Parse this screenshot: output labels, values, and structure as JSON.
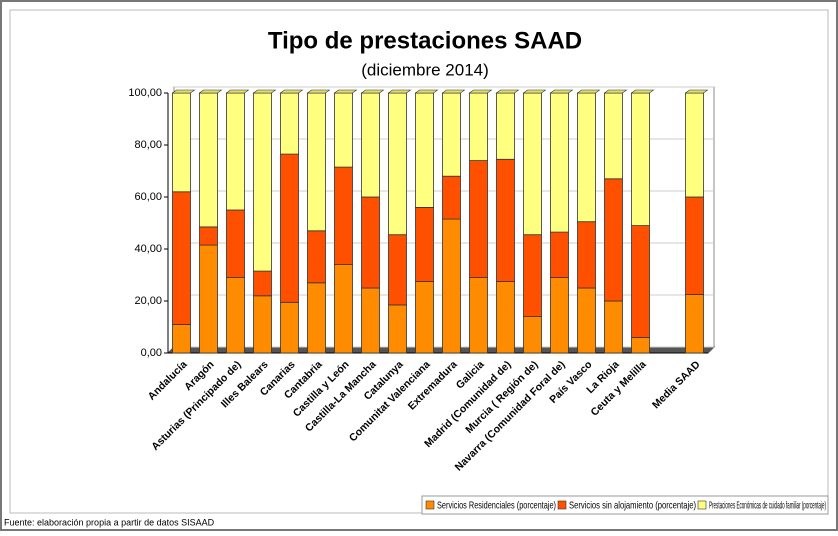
{
  "chart_data": {
    "type": "stacked_bar",
    "title": "Tipo de prestaciones SAAD",
    "subtitle": "(diciembre 2014)",
    "source": "Fuente: elaboración propia a partir de datos SISAAD",
    "categories": [
      "Andalucía",
      "Aragón",
      "Asturias (Principado de)",
      "Illes Balears",
      "Canarias",
      "Cantabria",
      "Castilla y León",
      "Castilla-La Mancha",
      "Catalunya",
      "Comunitat Valenciana",
      "Extremadura",
      "Galicia",
      "Madrid (Comunidad de)",
      "Murcia ( Región de)",
      "Navarra (Comunidad Foral de)",
      "País Vasco",
      "La Rioja",
      "Ceuta y Melilla",
      null,
      "Media SAAD"
    ],
    "series": [
      {
        "name": "Servicios Residenciales (porcentaje)",
        "color": "#ff8c00",
        "values": [
          11,
          41.5,
          29,
          22,
          19.5,
          27,
          34,
          25,
          18.5,
          27.5,
          51.5,
          29,
          27.5,
          14,
          29,
          25,
          20,
          6,
          null,
          22.5
        ]
      },
      {
        "name": "Servicios sin alojamiento (porcentaje)",
        "color": "#ff5000",
        "values": [
          51,
          7,
          26,
          9.5,
          57,
          20,
          37.5,
          35,
          27,
          28.5,
          16.5,
          45,
          47,
          31.5,
          17.5,
          25.5,
          47,
          43,
          null,
          37.5
        ]
      },
      {
        "name": "Prestaciones Económicas de cuidado familiar (porcentaje)",
        "color": "#ffff80",
        "values": [
          38,
          51.5,
          45,
          68.5,
          23.5,
          53,
          28.5,
          40,
          54.5,
          44,
          32,
          26,
          25.5,
          54.5,
          53.5,
          49.5,
          33,
          51,
          null,
          40
        ]
      }
    ],
    "ylim": [
      0,
      100
    ],
    "yticks": [
      {
        "value": 0,
        "label": "0,00"
      },
      {
        "value": 20,
        "label": "20,00"
      },
      {
        "value": 40,
        "label": "40,00"
      },
      {
        "value": 60,
        "label": "60,00"
      },
      {
        "value": 80,
        "label": "80,00"
      },
      {
        "value": 100,
        "label": "100,00"
      }
    ],
    "grid": true
  }
}
